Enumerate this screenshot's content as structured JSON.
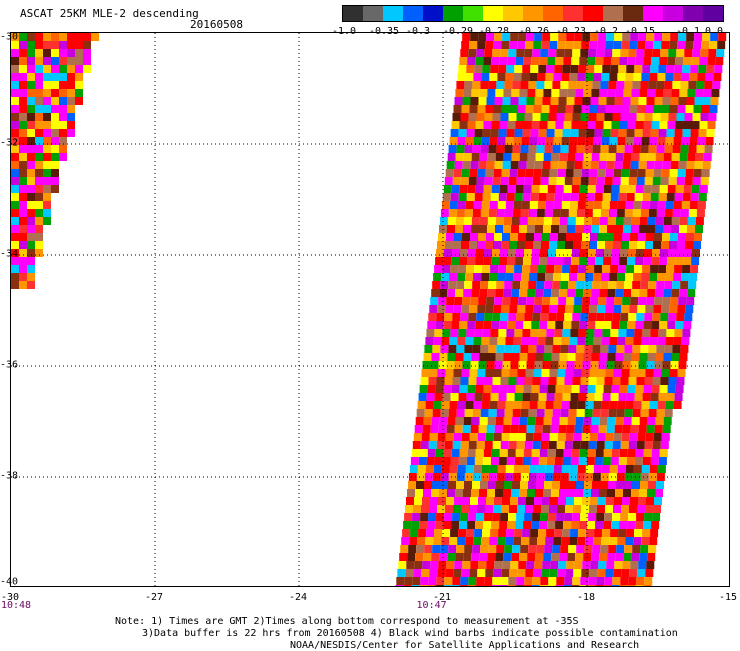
{
  "title": "ASCAT 25KM MLE-2 descending",
  "date": "20160508",
  "colorbar": {
    "colors": [
      "#303030",
      "#686868",
      "#00c8ff",
      "#0060ff",
      "#0010c8",
      "#00a000",
      "#40e000",
      "#ffff00",
      "#ffc800",
      "#ff9600",
      "#ff6400",
      "#ff3030",
      "#ff0000",
      "#b07050",
      "#6a2a10",
      "#ff00ff",
      "#c800e0",
      "#8000b0",
      "#6000a0"
    ],
    "labels": [
      "-1.0",
      "-0.35",
      "-0.3",
      "-0.29",
      "-0.28",
      "-0.26",
      "-0.23",
      "-0.2",
      "-0.15",
      "-0.1",
      "0.0"
    ]
  },
  "chart_data": {
    "type": "heatmap",
    "x_ticks": [
      "-30",
      "-27",
      "-24",
      "-21",
      "-18",
      "-15"
    ],
    "y_ticks": [
      "-30",
      "-32",
      "-34",
      "-36",
      "-38",
      "-40"
    ],
    "xlim": [
      -30,
      -15
    ],
    "ylim": [
      -40,
      -30
    ],
    "grid": true,
    "time_labels": [
      {
        "text": "10:48",
        "lon": -30
      },
      {
        "text": "10:47",
        "lon": -21.3
      }
    ],
    "swaths": [
      {
        "name": "",
        "top_left_lon": -30,
        "top_right_lon": -28.3,
        "bottom_left_lon": -30,
        "bottom_right_lon": -29.7,
        "lat_top": -30,
        "lat_bottom": -34.6
      },
      {
        "name": "",
        "top_left_lon": -20.6,
        "top_right_lon": -15.2,
        "bottom_left_lon": -22.0,
        "bottom_right_lon": -16.7,
        "lat_top": -30,
        "lat_bottom": -40
      }
    ]
  },
  "notes": {
    "line1": "Note: 1) Times are GMT 2)Times along bottom correspond to measurement at -35S",
    "line2": "3)Data buffer is 22 hrs from 20160508 4) Black wind barbs indicate possible contamination",
    "line3": "NOAA/NESDIS/Center for Satellite Applications and Research"
  }
}
